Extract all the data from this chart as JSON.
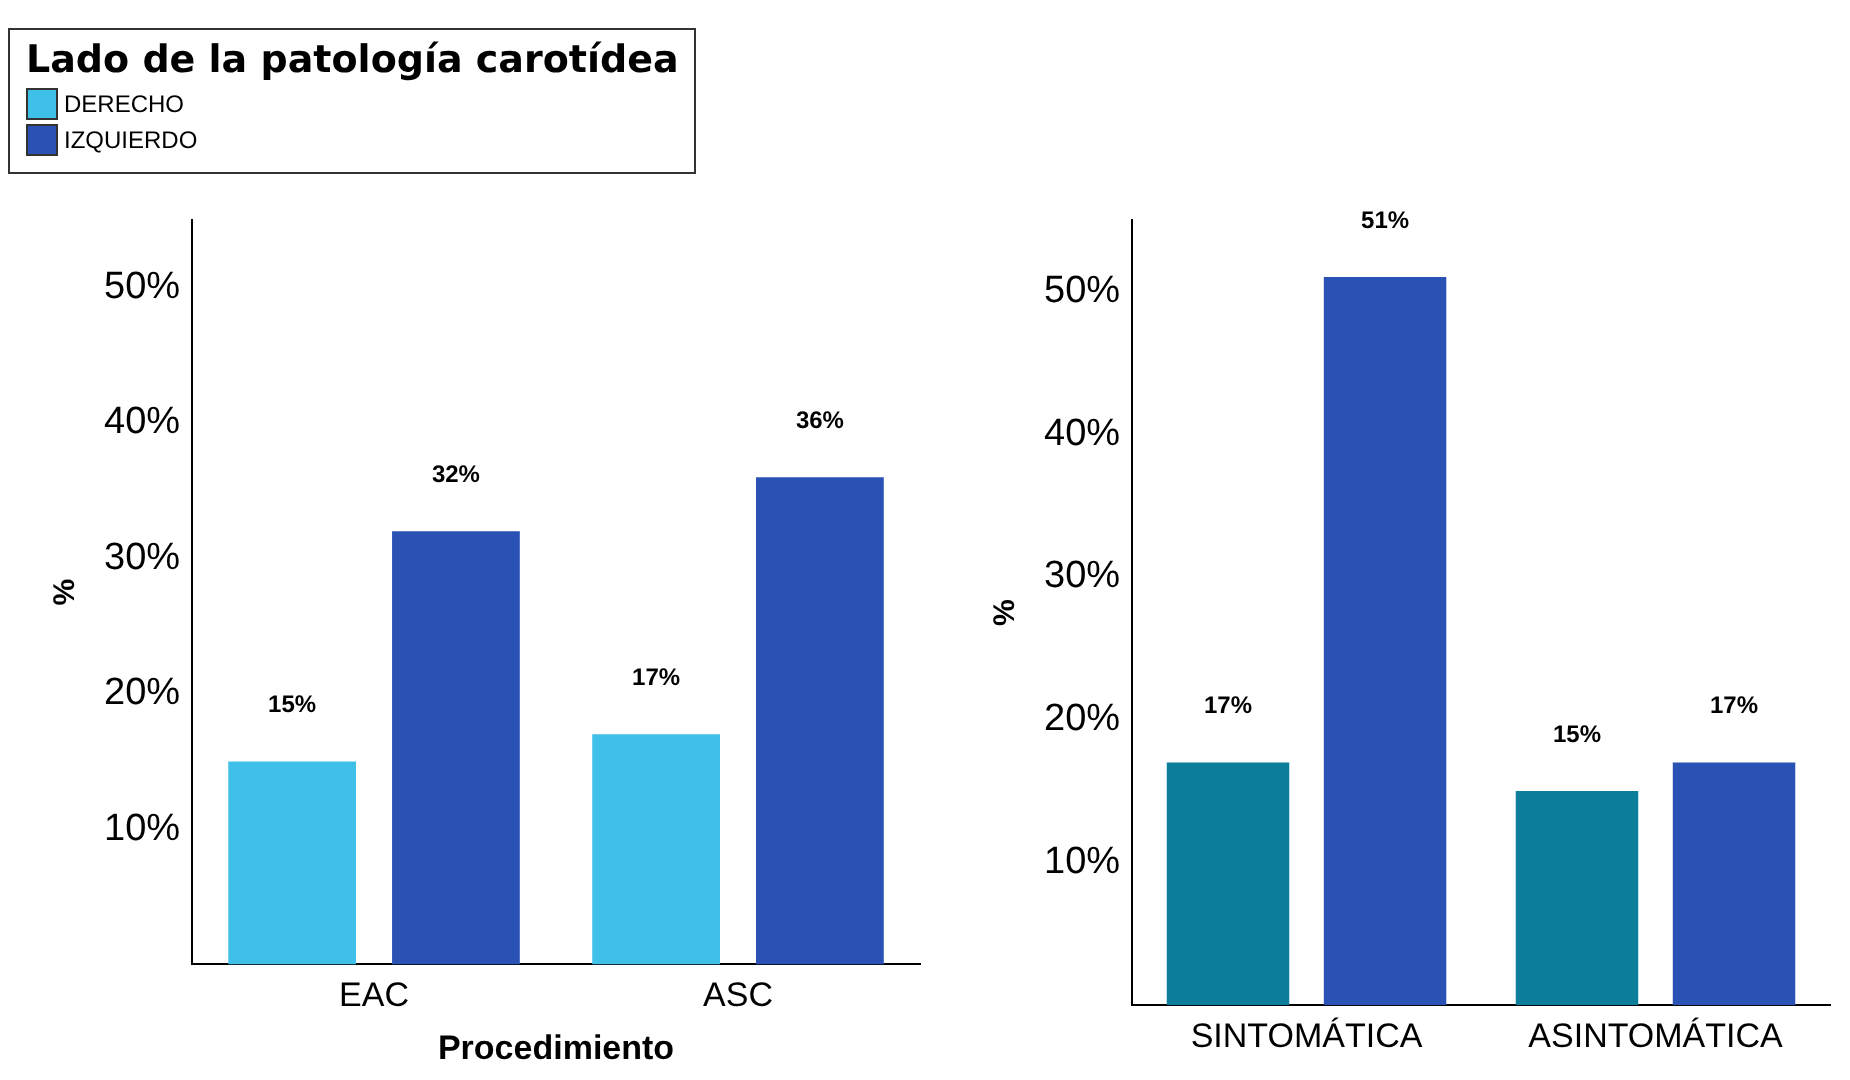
{
  "chart_data": [
    {
      "type": "bar",
      "legend_title": "Lado de la patología carotídea",
      "xlabel": "Procedimiento",
      "ylabel": "%",
      "categories": [
        "EAC",
        "ASC"
      ],
      "series": [
        {
          "name": "DERECHO",
          "color": "#3fc0e8",
          "values": [
            15,
            17
          ],
          "value_labels": [
            "15%",
            "17%"
          ]
        },
        {
          "name": "IZQUIERDO",
          "color": "#2a52b4",
          "values": [
            32,
            36
          ],
          "value_labels": [
            "32%",
            "36%"
          ]
        }
      ],
      "ylim": [
        0,
        55
      ],
      "yticks": [
        {
          "value": 10,
          "label": "10%"
        },
        {
          "value": 20,
          "label": "20%"
        },
        {
          "value": 30,
          "label": "30%"
        },
        {
          "value": 40,
          "label": "40%"
        },
        {
          "value": 50,
          "label": "50%"
        }
      ],
      "legend": "top left",
      "grid": false
    },
    {
      "type": "bar",
      "ylabel": "%",
      "categories": [
        "SINTOMÁTICA",
        "ASINTOMÁTICA"
      ],
      "series": [
        {
          "color": "#0c7e9c",
          "values": [
            17,
            15
          ],
          "value_labels": [
            "17%",
            "15%"
          ]
        },
        {
          "color": "#2a52b4",
          "values": [
            51,
            17
          ],
          "value_labels": [
            "51%",
            "17%"
          ]
        }
      ],
      "ylim": [
        0,
        55
      ],
      "yticks": [
        {
          "value": 10,
          "label": "10%"
        },
        {
          "value": 20,
          "label": "20%"
        },
        {
          "value": 30,
          "label": "30%"
        },
        {
          "value": 40,
          "label": "40%"
        },
        {
          "value": 50,
          "label": "50%"
        }
      ],
      "grid": false
    }
  ]
}
